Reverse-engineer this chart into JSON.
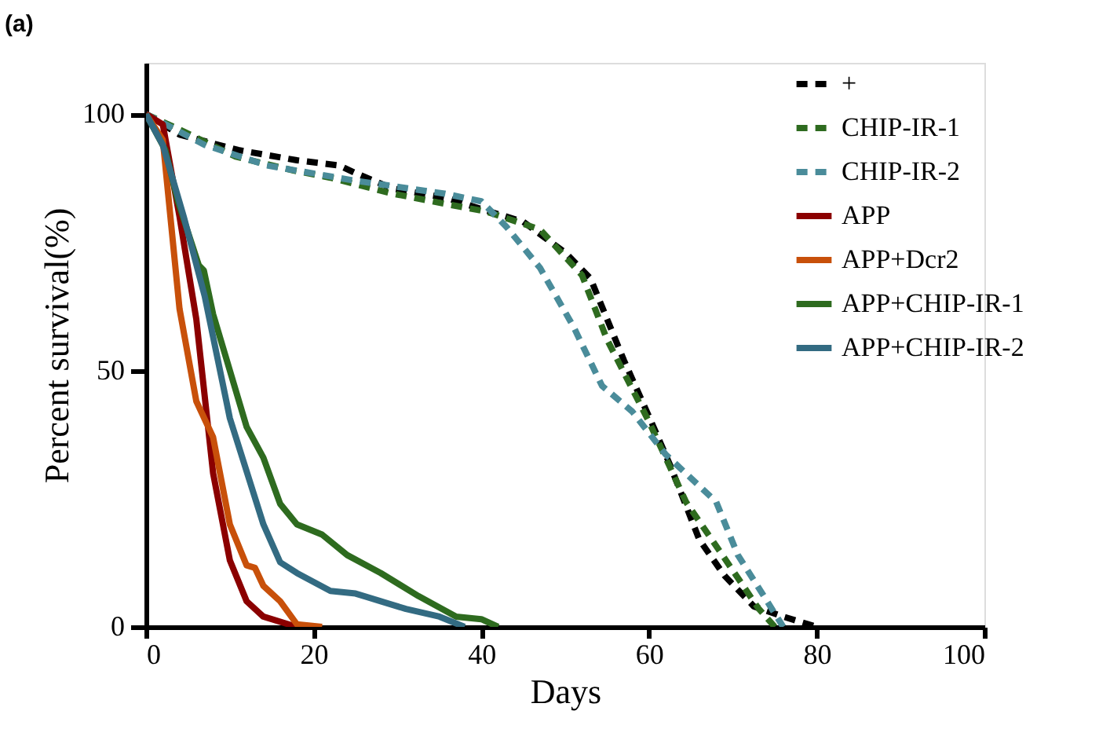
{
  "chart_data": {
    "type": "line",
    "xlabel": "Days",
    "ylabel": "Percent survival(%)",
    "annotations": [
      "(a)"
    ],
    "xlim": [
      0,
      100
    ],
    "xticks": [
      0,
      20,
      40,
      60,
      80,
      100
    ],
    "ylim": [
      0,
      110
    ],
    "yticks": [
      0,
      50,
      100
    ],
    "grid": false,
    "legend": "top right",
    "marker": "none",
    "series": [
      {
        "name": "+",
        "color": "#000000",
        "line_style": "dashed",
        "x": [
          0,
          4,
          11,
          18,
          23,
          25,
          29.4,
          36,
          38,
          45,
          50,
          53,
          57,
          60,
          62.5,
          66,
          69,
          72.5,
          76,
          80
        ],
        "values": [
          100,
          96,
          93,
          91,
          90,
          88.5,
          85.5,
          83.6,
          82.5,
          79,
          73,
          68,
          52,
          41,
          31.6,
          17,
          10,
          4,
          2,
          0
        ]
      },
      {
        "name": "CHIP-IR-1",
        "color": "#2e6b1f",
        "line_style": "dashed",
        "x": [
          0,
          4,
          10.7,
          17.6,
          22,
          29.4,
          36,
          40.6,
          47,
          52,
          55,
          60,
          64.4,
          70,
          73,
          75
        ],
        "values": [
          100,
          97,
          91.7,
          89,
          87.6,
          84.5,
          82.4,
          81,
          77.5,
          68.6,
          56,
          40,
          24.4,
          11,
          3.7,
          0
        ]
      },
      {
        "name": "CHIP-IR-2",
        "color": "#4a8c9a",
        "line_style": "dashed",
        "x": [
          0,
          7,
          14.4,
          25,
          35.6,
          40,
          43,
          47,
          51,
          54.4,
          58,
          62,
          68,
          70.6,
          73.7,
          76
        ],
        "values": [
          100,
          94,
          90,
          87,
          84.5,
          83,
          78,
          70,
          58.5,
          47,
          42,
          33.6,
          24.4,
          14,
          6,
          0
        ]
      },
      {
        "name": "APP",
        "color": "#8b0000",
        "line_style": "solid",
        "x": [
          0,
          2,
          4,
          6,
          8,
          10,
          12,
          14,
          18
        ],
        "values": [
          100,
          98,
          80,
          60,
          30,
          13,
          5,
          2,
          0
        ]
      },
      {
        "name": "APP+Dcr2",
        "color": "#c8500a",
        "line_style": "solid",
        "x": [
          0,
          2,
          4,
          6,
          8,
          10,
          12,
          13,
          14,
          16,
          18,
          21
        ],
        "values": [
          100,
          95,
          62,
          44,
          37,
          20,
          12,
          11.5,
          8,
          5,
          0.5,
          0
        ]
      },
      {
        "name": "APP+CHIP-IR-1",
        "color": "#2e6b1f",
        "line_style": "solid",
        "x": [
          0,
          2.3,
          3.8,
          6.3,
          6.9,
          8,
          12,
          14,
          16,
          18,
          21,
          24,
          28,
          32.5,
          37,
          40,
          42
        ],
        "values": [
          100,
          93,
          83,
          70.5,
          69.5,
          61,
          39,
          33,
          24,
          20,
          18,
          14,
          10.5,
          6,
          2,
          1.5,
          0
        ]
      },
      {
        "name": "APP+CHIP-IR-2",
        "color": "#336b82",
        "line_style": "solid",
        "x": [
          0,
          2,
          4.5,
          7,
          10,
          14,
          16,
          18,
          22,
          25,
          28,
          31,
          35,
          38
        ],
        "values": [
          100,
          94,
          80,
          64.5,
          40.7,
          20,
          12.6,
          10.5,
          7,
          6.5,
          5,
          3.5,
          2,
          0
        ]
      }
    ]
  }
}
